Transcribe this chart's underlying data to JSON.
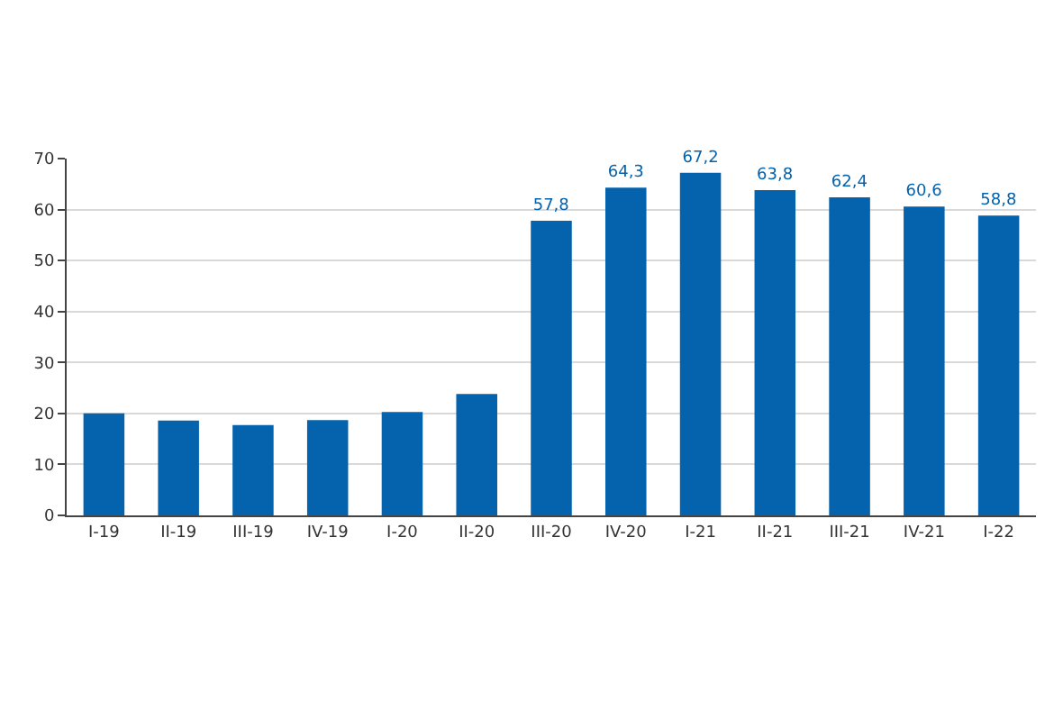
{
  "chart_data": {
    "type": "bar",
    "categories": [
      "I-19",
      "II-19",
      "III-19",
      "IV-19",
      "I-20",
      "II-20",
      "III-20",
      "IV-20",
      "I-21",
      "II-21",
      "III-21",
      "IV-21",
      "I-22"
    ],
    "values": [
      20.0,
      18.6,
      17.7,
      18.7,
      20.3,
      23.8,
      57.8,
      64.3,
      67.2,
      63.8,
      62.4,
      60.6,
      58.8
    ],
    "value_labels": [
      null,
      null,
      null,
      null,
      null,
      null,
      "57,8",
      "64,3",
      "67,2",
      "63,8",
      "62,4",
      "60,6",
      "58,8"
    ],
    "color": "#0563ad",
    "ylim": [
      0,
      70
    ],
    "yticks": [
      0,
      10,
      20,
      30,
      40,
      50,
      60,
      70
    ],
    "grid": "y"
  }
}
